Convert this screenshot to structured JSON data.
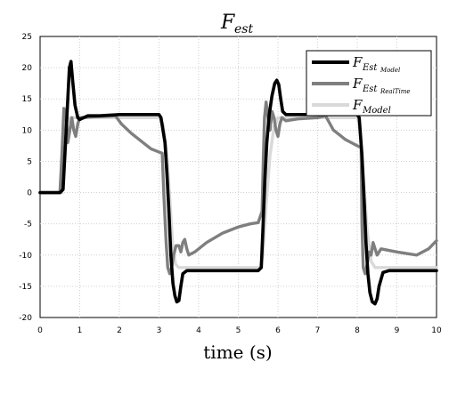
{
  "chart_data": {
    "type": "line",
    "title": {
      "main": "F",
      "sub": "est"
    },
    "xlabel": "time (s)",
    "ylabel": "",
    "xlim": [
      0,
      10
    ],
    "ylim": [
      -20,
      25
    ],
    "x_ticks": [
      "0",
      "1",
      "2",
      "3",
      "4",
      "5",
      "6",
      "7",
      "8",
      "9",
      "10"
    ],
    "y_ticks": [
      "25",
      "20",
      "15",
      "10",
      "5",
      "0",
      "-5",
      "-10",
      "-15",
      "-20"
    ],
    "grid": true,
    "legend_position": "top-right",
    "series": [
      {
        "name": "F_Est_Model",
        "legend": {
          "main": "F",
          "sub": "Est",
          "sub2": "Model"
        },
        "color": "#000000",
        "points": [
          [
            0,
            0
          ],
          [
            0.5,
            0
          ],
          [
            0.58,
            0.5
          ],
          [
            0.65,
            9
          ],
          [
            0.7,
            15
          ],
          [
            0.74,
            20
          ],
          [
            0.78,
            21
          ],
          [
            0.82,
            18
          ],
          [
            0.88,
            14
          ],
          [
            0.95,
            12
          ],
          [
            1.0,
            11.7
          ],
          [
            1.2,
            12.3
          ],
          [
            1.5,
            12.3
          ],
          [
            2.0,
            12.5
          ],
          [
            2.5,
            12.5
          ],
          [
            3.0,
            12.5
          ],
          [
            3.05,
            12
          ],
          [
            3.15,
            8
          ],
          [
            3.2,
            3
          ],
          [
            3.25,
            -3
          ],
          [
            3.3,
            -10
          ],
          [
            3.35,
            -14.5
          ],
          [
            3.4,
            -16.5
          ],
          [
            3.45,
            -17.5
          ],
          [
            3.5,
            -17.3
          ],
          [
            3.55,
            -15
          ],
          [
            3.6,
            -13
          ],
          [
            3.7,
            -12.5
          ],
          [
            4,
            -12.5
          ],
          [
            5,
            -12.5
          ],
          [
            5.5,
            -12.5
          ],
          [
            5.58,
            -12
          ],
          [
            5.62,
            -6
          ],
          [
            5.67,
            2
          ],
          [
            5.72,
            8
          ],
          [
            5.78,
            12.5
          ],
          [
            5.85,
            15.5
          ],
          [
            5.92,
            17.5
          ],
          [
            5.97,
            18
          ],
          [
            6.02,
            17.3
          ],
          [
            6.07,
            15
          ],
          [
            6.12,
            13
          ],
          [
            6.2,
            12.5
          ],
          [
            7,
            12.5
          ],
          [
            8,
            12.5
          ],
          [
            8.05,
            12
          ],
          [
            8.12,
            6
          ],
          [
            8.18,
            -2
          ],
          [
            8.22,
            -8
          ],
          [
            8.27,
            -13
          ],
          [
            8.32,
            -16
          ],
          [
            8.38,
            -17.5
          ],
          [
            8.45,
            -17.8
          ],
          [
            8.5,
            -17
          ],
          [
            8.55,
            -15
          ],
          [
            8.65,
            -12.8
          ],
          [
            8.8,
            -12.5
          ],
          [
            9.5,
            -12.5
          ],
          [
            10,
            -12.5
          ]
        ]
      },
      {
        "name": "F_Est_RealTime",
        "legend": {
          "main": "F",
          "sub": "Est",
          "sub2": "RealTime"
        },
        "color": "#7f7f7f",
        "points": [
          [
            0,
            0
          ],
          [
            0.5,
            0
          ],
          [
            0.55,
            6
          ],
          [
            0.6,
            13.5
          ],
          [
            0.65,
            13
          ],
          [
            0.7,
            8
          ],
          [
            0.75,
            10
          ],
          [
            0.8,
            12
          ],
          [
            0.85,
            10
          ],
          [
            0.9,
            9
          ],
          [
            0.95,
            11
          ],
          [
            1.0,
            12
          ],
          [
            1.5,
            12.2
          ],
          [
            1.9,
            12.3
          ],
          [
            2.05,
            11
          ],
          [
            2.3,
            9.5
          ],
          [
            2.6,
            8
          ],
          [
            2.8,
            7
          ],
          [
            3.0,
            6.5
          ],
          [
            3.08,
            6.3
          ],
          [
            3.12,
            0
          ],
          [
            3.18,
            -8
          ],
          [
            3.22,
            -12
          ],
          [
            3.27,
            -13
          ],
          [
            3.32,
            -12
          ],
          [
            3.37,
            -10
          ],
          [
            3.43,
            -8.5
          ],
          [
            3.5,
            -8.5
          ],
          [
            3.55,
            -9.5
          ],
          [
            3.6,
            -8
          ],
          [
            3.65,
            -7.5
          ],
          [
            3.7,
            -9
          ],
          [
            3.75,
            -10
          ],
          [
            3.9,
            -9.5
          ],
          [
            4.2,
            -8
          ],
          [
            4.6,
            -6.5
          ],
          [
            5.0,
            -5.5
          ],
          [
            5.3,
            -5
          ],
          [
            5.5,
            -4.8
          ],
          [
            5.6,
            -3
          ],
          [
            5.63,
            5
          ],
          [
            5.66,
            12
          ],
          [
            5.7,
            14.5
          ],
          [
            5.75,
            12
          ],
          [
            5.8,
            10
          ],
          [
            5.85,
            13
          ],
          [
            5.9,
            12
          ],
          [
            5.95,
            10
          ],
          [
            6.0,
            9
          ],
          [
            6.05,
            11
          ],
          [
            6.1,
            12
          ],
          [
            6.2,
            11.5
          ],
          [
            6.5,
            11.8
          ],
          [
            7,
            12
          ],
          [
            7.2,
            12.3
          ],
          [
            7.4,
            10
          ],
          [
            7.7,
            8.5
          ],
          [
            8.0,
            7.5
          ],
          [
            8.1,
            7.2
          ],
          [
            8.12,
            -5
          ],
          [
            8.15,
            -12
          ],
          [
            8.2,
            -13
          ],
          [
            8.25,
            -11.5
          ],
          [
            8.3,
            -9.5
          ],
          [
            8.35,
            -10
          ],
          [
            8.4,
            -8
          ],
          [
            8.45,
            -9
          ],
          [
            8.5,
            -10
          ],
          [
            8.6,
            -9
          ],
          [
            9.0,
            -9.5
          ],
          [
            9.5,
            -10
          ],
          [
            9.8,
            -9
          ],
          [
            10,
            -7.7
          ]
        ]
      },
      {
        "name": "F_Model",
        "legend": {
          "main": "F",
          "sub": "Model",
          "sub2": ""
        },
        "color": "#d9d9d9",
        "points": [
          [
            0,
            0
          ],
          [
            0.55,
            0
          ],
          [
            0.62,
            5
          ],
          [
            0.68,
            11
          ],
          [
            0.75,
            12
          ],
          [
            3.0,
            12
          ],
          [
            3.1,
            11
          ],
          [
            3.2,
            6
          ],
          [
            3.28,
            -2
          ],
          [
            3.35,
            -9
          ],
          [
            3.42,
            -11.5
          ],
          [
            3.5,
            -12
          ],
          [
            5.55,
            -12
          ],
          [
            5.62,
            -10
          ],
          [
            5.7,
            -2
          ],
          [
            5.8,
            6
          ],
          [
            5.9,
            10.5
          ],
          [
            6.0,
            12
          ],
          [
            8.0,
            12
          ],
          [
            8.05,
            11
          ],
          [
            8.15,
            3
          ],
          [
            8.25,
            -6
          ],
          [
            8.35,
            -11
          ],
          [
            8.45,
            -12
          ],
          [
            10,
            -12
          ]
        ]
      }
    ]
  }
}
